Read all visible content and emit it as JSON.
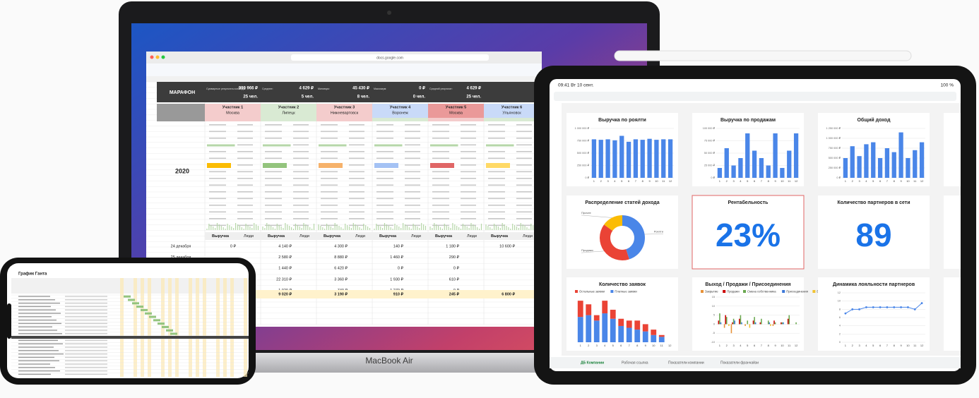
{
  "laptop": {
    "label": "MacBook Air",
    "url": "docs.google.com",
    "sheet": {
      "title": "МАРАФОН",
      "year": "2020",
      "summary": [
        {
          "label": "Суммарные результаты команды:",
          "value": "999 966 ₽",
          "people": "25 чел."
        },
        {
          "label": "Среднее:",
          "value": "4 629 ₽",
          "people": "5 чел."
        },
        {
          "label": "Минимум:",
          "value": "45 430 ₽",
          "people": "8 чел."
        },
        {
          "label": "Максимум:",
          "value": "0 ₽",
          "people": "0 чел."
        },
        {
          "label": "Средний результат:",
          "value": "4 629 ₽",
          "people": "25 чел."
        }
      ],
      "participants": [
        {
          "name": "Участник 1",
          "city": "Москва",
          "color": "#f4cccc"
        },
        {
          "name": "Участник 2",
          "city": "Липецк",
          "color": "#d9ead3"
        },
        {
          "name": "Участник 3",
          "city": "Нижневартовск",
          "color": "#f4cccc"
        },
        {
          "name": "Участник 4",
          "city": "Воронеж",
          "color": "#c9daf8"
        },
        {
          "name": "Участник 5",
          "city": "Москва",
          "color": "#ea9999"
        },
        {
          "name": "Участник 6",
          "city": "Ульяновск",
          "color": "#c9daf8"
        }
      ],
      "col_headers": [
        "Выручка",
        "Люди"
      ],
      "rows": [
        {
          "date": "24 декабря",
          "values": [
            "0 ₽",
            "4 140 ₽",
            "4 300 ₽",
            "140 ₽",
            "1 180 ₽",
            "10 600 ₽"
          ]
        },
        {
          "date": "25 декабря",
          "values": [
            "2 580 ₽",
            "8 880 ₽",
            "1 460 ₽",
            "290 ₽"
          ]
        },
        {
          "values": [
            "1 440 ₽",
            "6 420 ₽",
            "0 ₽",
            "0 ₽"
          ]
        },
        {
          "values": [
            "22 310 ₽",
            "3 360 ₽",
            "1 930 ₽",
            "610 ₽"
          ]
        },
        {
          "values": [
            "1 020 ₽",
            "740 ₽",
            "1 270 ₽",
            "0 ₽"
          ]
        }
      ],
      "totals": [
        "9 020 ₽",
        "3 190 ₽",
        "910 ₽",
        "245 ₽",
        "6 800 ₽"
      ]
    }
  },
  "ipad": {
    "time": "09:41 Вт 10 сент.",
    "battery": "100 %",
    "tabs": [
      "ДБ Компании",
      "Рабочая ссылка",
      "Показатели компании",
      "Показатели франчайзи"
    ]
  },
  "iphone": {
    "title": "График Ганта"
  },
  "chart_data": [
    {
      "type": "bar",
      "title": "Выручка по роялти",
      "categories": [
        "1",
        "2",
        "3",
        "4",
        "5",
        "6",
        "7",
        "8",
        "9",
        "10",
        "11",
        "12"
      ],
      "values": [
        780000,
        770000,
        780000,
        760000,
        850000,
        730000,
        780000,
        770000,
        790000,
        770000,
        780000,
        780000
      ],
      "color": "#4a86e8",
      "ylim": [
        0,
        1000000
      ],
      "yticks": [
        {
          "value": 0,
          "label": "0 ₽"
        },
        {
          "value": 250000,
          "label": "250 000 ₽"
        },
        {
          "value": 500000,
          "label": "500 000 ₽"
        },
        {
          "value": 750000,
          "label": "750 000 ₽"
        },
        {
          "value": 1000000,
          "label": "1 000 000 ₽"
        }
      ],
      "grid": true
    },
    {
      "type": "bar",
      "title": "Выручка по продажам",
      "categories": [
        "1",
        "2",
        "3",
        "4",
        "5",
        "6",
        "7",
        "8",
        "9",
        "10",
        "11",
        "12"
      ],
      "values": [
        20000,
        60000,
        25000,
        40000,
        90000,
        55000,
        40000,
        25000,
        90000,
        20000,
        55000,
        90000
      ],
      "color": "#4a86e8",
      "ylim": [
        0,
        100000
      ],
      "yticks": [
        {
          "value": 0,
          "label": "0 ₽"
        },
        {
          "value": 25000,
          "label": "25 000 ₽"
        },
        {
          "value": 50000,
          "label": "50 000 ₽"
        },
        {
          "value": 75000,
          "label": "75 000 ₽"
        },
        {
          "value": 100000,
          "label": "100 000 ₽"
        }
      ],
      "grid": true
    },
    {
      "type": "bar",
      "title": "Общий доход",
      "categories": [
        "1",
        "2",
        "3",
        "4",
        "5",
        "6",
        "7",
        "8",
        "9",
        "10",
        "11",
        "12"
      ],
      "values": [
        500000,
        800000,
        550000,
        850000,
        900000,
        500000,
        750000,
        650000,
        1150000,
        500000,
        700000,
        900000
      ],
      "color": "#4a86e8",
      "ylim": [
        0,
        1250000
      ],
      "yticks": [
        {
          "value": 0,
          "label": "0 ₽"
        },
        {
          "value": 250000,
          "label": "250 000 ₽"
        },
        {
          "value": 500000,
          "label": "500 000 ₽"
        },
        {
          "value": 750000,
          "label": "750 000 ₽"
        },
        {
          "value": 1000000,
          "label": "1 000 000 ₽"
        },
        {
          "value": 1250000,
          "label": "1 250 000 ₽"
        }
      ],
      "grid": true
    },
    {
      "type": "pie",
      "title": "Распределение статей дохода",
      "categories": [
        "Роялти",
        "Продажи",
        "Прочее"
      ],
      "values": [
        45,
        40,
        15
      ],
      "colors": [
        "#4a86e8",
        "#ea4335",
        "#fbbc04"
      ]
    },
    {
      "type": "kpi",
      "title": "Рентабельность",
      "values": [
        23
      ],
      "value_labels": [
        "23%"
      ],
      "color": "#1a73e8",
      "border_color": "#e06666"
    },
    {
      "type": "kpi",
      "title": "Количество партнеров в сети",
      "values": [
        89
      ],
      "color": "#1a73e8"
    },
    {
      "type": "bar",
      "title": "Количество заявок",
      "stacked": true,
      "categories": [
        "1",
        "2",
        "3",
        "4",
        "5",
        "6",
        "7",
        "8",
        "9",
        "10",
        "11",
        "12"
      ],
      "series": [
        {
          "name": "Остальные заявки",
          "color": "#ea4335",
          "values": [
            9,
            6,
            3,
            7,
            5,
            4,
            4,
            5,
            4,
            3,
            1,
            0
          ]
        },
        {
          "name": "Платные заявки",
          "color": "#4a86e8",
          "values": [
            14,
            15,
            12,
            16,
            13,
            9,
            8,
            7,
            6,
            4,
            3,
            0
          ]
        }
      ],
      "ylim": [
        0,
        25
      ],
      "grid": true
    },
    {
      "type": "bar",
      "title": "Выход / Продажи / Присоединения",
      "categories": [
        "1",
        "2",
        "3",
        "4",
        "5",
        "6",
        "7",
        "8",
        "9",
        "10",
        "11",
        "12"
      ],
      "series": [
        {
          "name": "Закрытие",
          "color": "#e69138",
          "values": [
            0,
            -2,
            -5,
            0,
            -1,
            0,
            0,
            0,
            -1,
            0,
            0,
            0
          ]
        },
        {
          "name": "Продажи",
          "color": "#cc0000",
          "values": [
            2,
            5,
            1,
            3,
            0,
            2,
            1,
            0,
            2,
            1,
            3,
            0
          ]
        },
        {
          "name": "Смена собственника",
          "color": "#6aa84f",
          "values": [
            6,
            4,
            3,
            5,
            2,
            4,
            3,
            2,
            1,
            1,
            5,
            1
          ]
        },
        {
          "name": "Присоединения",
          "color": "#3c78d8",
          "values": [
            1,
            0,
            2,
            1,
            0,
            1,
            0,
            1,
            0,
            1,
            0,
            0
          ]
        },
        {
          "name": "Выходы",
          "color": "#f1c232",
          "values": [
            0,
            -1,
            0,
            0,
            -2,
            0,
            0,
            -1,
            0,
            0,
            0,
            0
          ]
        }
      ],
      "ylim": [
        -10,
        15
      ],
      "yticks": [
        -10,
        -5,
        0,
        5,
        10,
        15
      ],
      "grid": true
    },
    {
      "type": "line",
      "title": "Динамика лояльности партнеров",
      "categories": [
        "1",
        "2",
        "3",
        "4",
        "5",
        "6",
        "7",
        "8",
        "9",
        "10",
        "11",
        "12"
      ],
      "values": [
        7,
        8,
        8,
        8.5,
        8.5,
        8.5,
        8.5,
        8.5,
        8.5,
        8.5,
        8,
        9.5
      ],
      "color": "#4a86e8",
      "ylim": [
        0,
        12
      ],
      "yticks": [
        0,
        2,
        4,
        6,
        8,
        10,
        12
      ],
      "grid": true
    }
  ]
}
